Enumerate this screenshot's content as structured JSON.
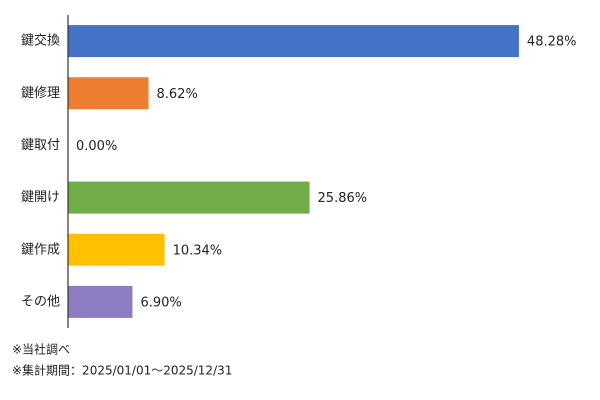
{
  "chart_data": {
    "type": "hbar",
    "categories": [
      "鍵交換",
      "鍵修理",
      "鍵取付",
      "鍵開け",
      "鍵作成",
      "その他"
    ],
    "values": [
      48.28,
      8.62,
      0.0,
      25.86,
      10.34,
      6.9
    ],
    "value_labels": [
      "48.28%",
      "8.62%",
      "0.00%",
      "25.86%",
      "10.34%",
      "6.90%"
    ],
    "colors": [
      "#4472c4",
      "#ed7d31",
      "#a5a5a5",
      "#70ad47",
      "#ffc000",
      "#8e7cc3"
    ],
    "xlim": [
      0,
      50
    ],
    "notes": [
      "※当社調べ",
      "※集計期間：2025/01/01～2025/12/31"
    ]
  }
}
